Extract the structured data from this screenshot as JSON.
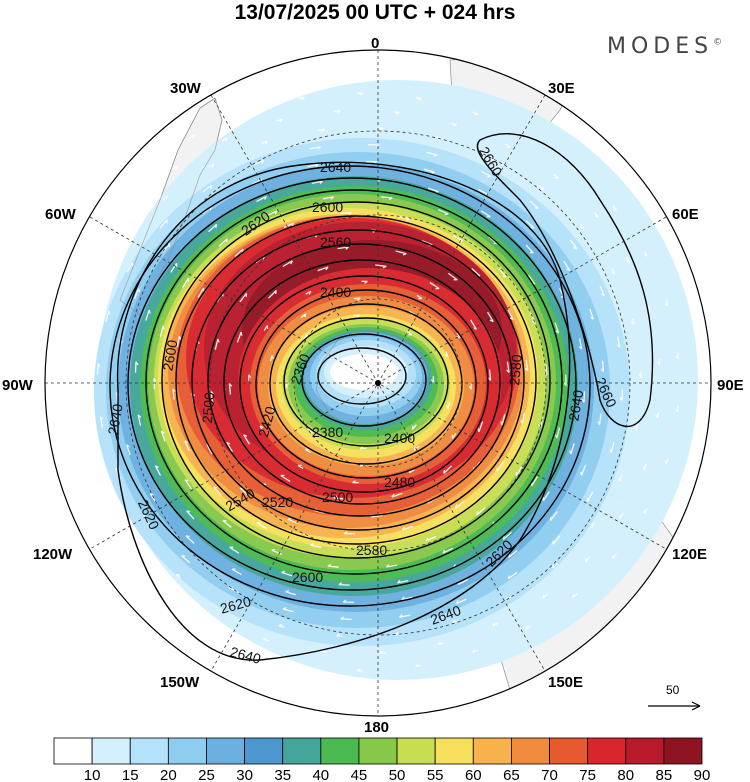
{
  "title": "13/07/2025  00 UTC  + 024 hrs",
  "brand": "MODES",
  "brand_mark": "©",
  "longitude_labels": [
    "0",
    "30E",
    "60E",
    "90E",
    "120E",
    "150E",
    "180",
    "150W",
    "120W",
    "90W",
    "60W",
    "30W"
  ],
  "contour_labels": [
    "2360",
    "2380",
    "2400",
    "2420",
    "2480",
    "2500",
    "2520",
    "2540",
    "2560",
    "2580",
    "2600",
    "2620",
    "2640",
    "2660"
  ],
  "reference_vector": {
    "label": "50",
    "value": 50
  },
  "colorbar": {
    "values": [
      10,
      15,
      20,
      25,
      30,
      35,
      40,
      45,
      50,
      55,
      60,
      65,
      70,
      75,
      80,
      85,
      90
    ],
    "labels": [
      "10",
      "15",
      "20",
      "25",
      "30",
      "35",
      "40",
      "45",
      "50",
      "55",
      "60",
      "65",
      "70",
      "75",
      "80",
      "85",
      "90"
    ],
    "colors": [
      "#ffffff",
      "#d4f0fd",
      "#b4e2fa",
      "#8fcdf0",
      "#6bb0e0",
      "#4d97cf",
      "#44a69b",
      "#4ab94f",
      "#86c84a",
      "#c8dd52",
      "#f6df5a",
      "#f7b24b",
      "#f08a3c",
      "#e75a30",
      "#d8262c",
      "#b81a2b",
      "#8e1422"
    ]
  },
  "colors": {
    "land": "#f2f2f2",
    "coast": "#999999",
    "contour": "#000000",
    "vector": "#ffffff"
  }
}
